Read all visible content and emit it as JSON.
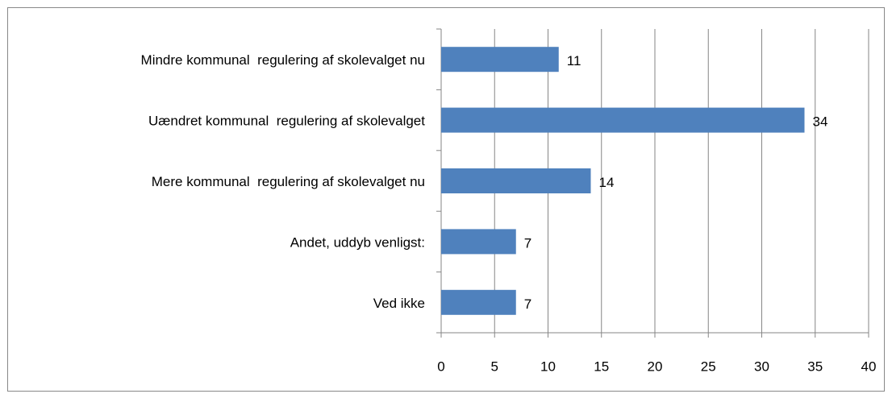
{
  "chart_data": {
    "type": "bar",
    "orientation": "horizontal",
    "categories": [
      "Mindre kommunal  regulering af skolevalget nu",
      "Uændret kommunal  regulering af skolevalget",
      "Mere kommunal  regulering af skolevalget nu",
      "Andet, uddyb venligst:",
      "Ved ikke"
    ],
    "values": [
      11,
      34,
      14,
      7,
      7
    ],
    "color": "#4f81bd",
    "xlim": [
      0,
      40
    ],
    "xticks": [
      0,
      5,
      10,
      15,
      20,
      25,
      30,
      35,
      40
    ],
    "grid": true
  }
}
